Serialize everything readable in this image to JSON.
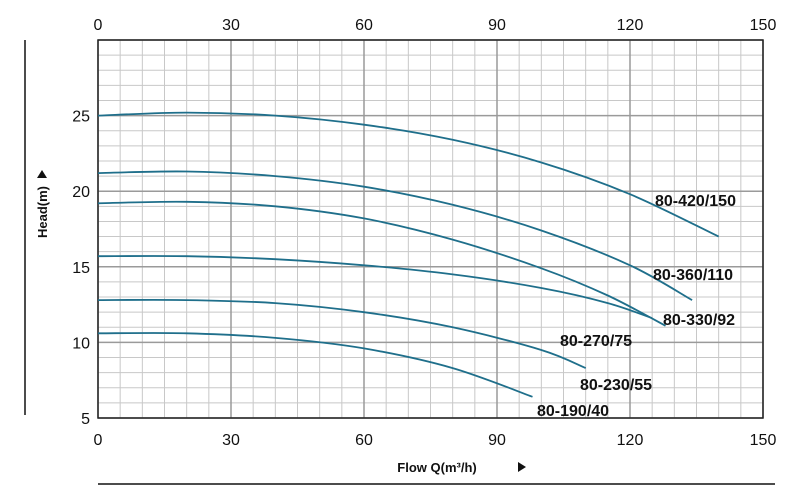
{
  "chart_data": {
    "type": "line",
    "title": "",
    "xlabel": "Flow Q(m³/h)",
    "ylabel": "Head(m)",
    "xlim": [
      0,
      150
    ],
    "ylim": [
      5,
      30
    ],
    "x_ticks": [
      0,
      30,
      60,
      90,
      120,
      150
    ],
    "y_ticks": [
      5,
      10,
      15,
      20,
      25
    ],
    "grid": true,
    "line_color": "#1f6f8b",
    "series": [
      {
        "name": "80-420/150",
        "x": [
          0,
          20,
          40,
          60,
          80,
          100,
          120,
          140
        ],
        "y": [
          25.0,
          25.2,
          25.0,
          24.4,
          23.4,
          21.9,
          19.8,
          17.0
        ]
      },
      {
        "name": "80-360/110",
        "x": [
          0,
          20,
          40,
          60,
          80,
          100,
          120,
          134
        ],
        "y": [
          21.2,
          21.3,
          21.0,
          20.3,
          19.1,
          17.4,
          15.1,
          12.8
        ]
      },
      {
        "name": "80-330/92",
        "x": [
          0,
          20,
          40,
          60,
          80,
          100,
          115,
          128
        ],
        "y": [
          19.2,
          19.3,
          19.0,
          18.2,
          16.8,
          14.9,
          13.1,
          11.1
        ]
      },
      {
        "name": "80-270/75",
        "x": [
          0,
          20,
          40,
          60,
          80,
          100,
          115,
          125
        ],
        "y": [
          15.7,
          15.7,
          15.5,
          15.1,
          14.5,
          13.6,
          12.6,
          11.6
        ]
      },
      {
        "name": "80-230/55",
        "x": [
          0,
          20,
          40,
          60,
          80,
          100,
          110
        ],
        "y": [
          12.8,
          12.8,
          12.6,
          12.0,
          11.0,
          9.5,
          8.3
        ]
      },
      {
        "name": "80-190/40",
        "x": [
          0,
          20,
          40,
          60,
          80,
          98
        ],
        "y": [
          10.6,
          10.6,
          10.3,
          9.6,
          8.3,
          6.4
        ]
      }
    ]
  }
}
